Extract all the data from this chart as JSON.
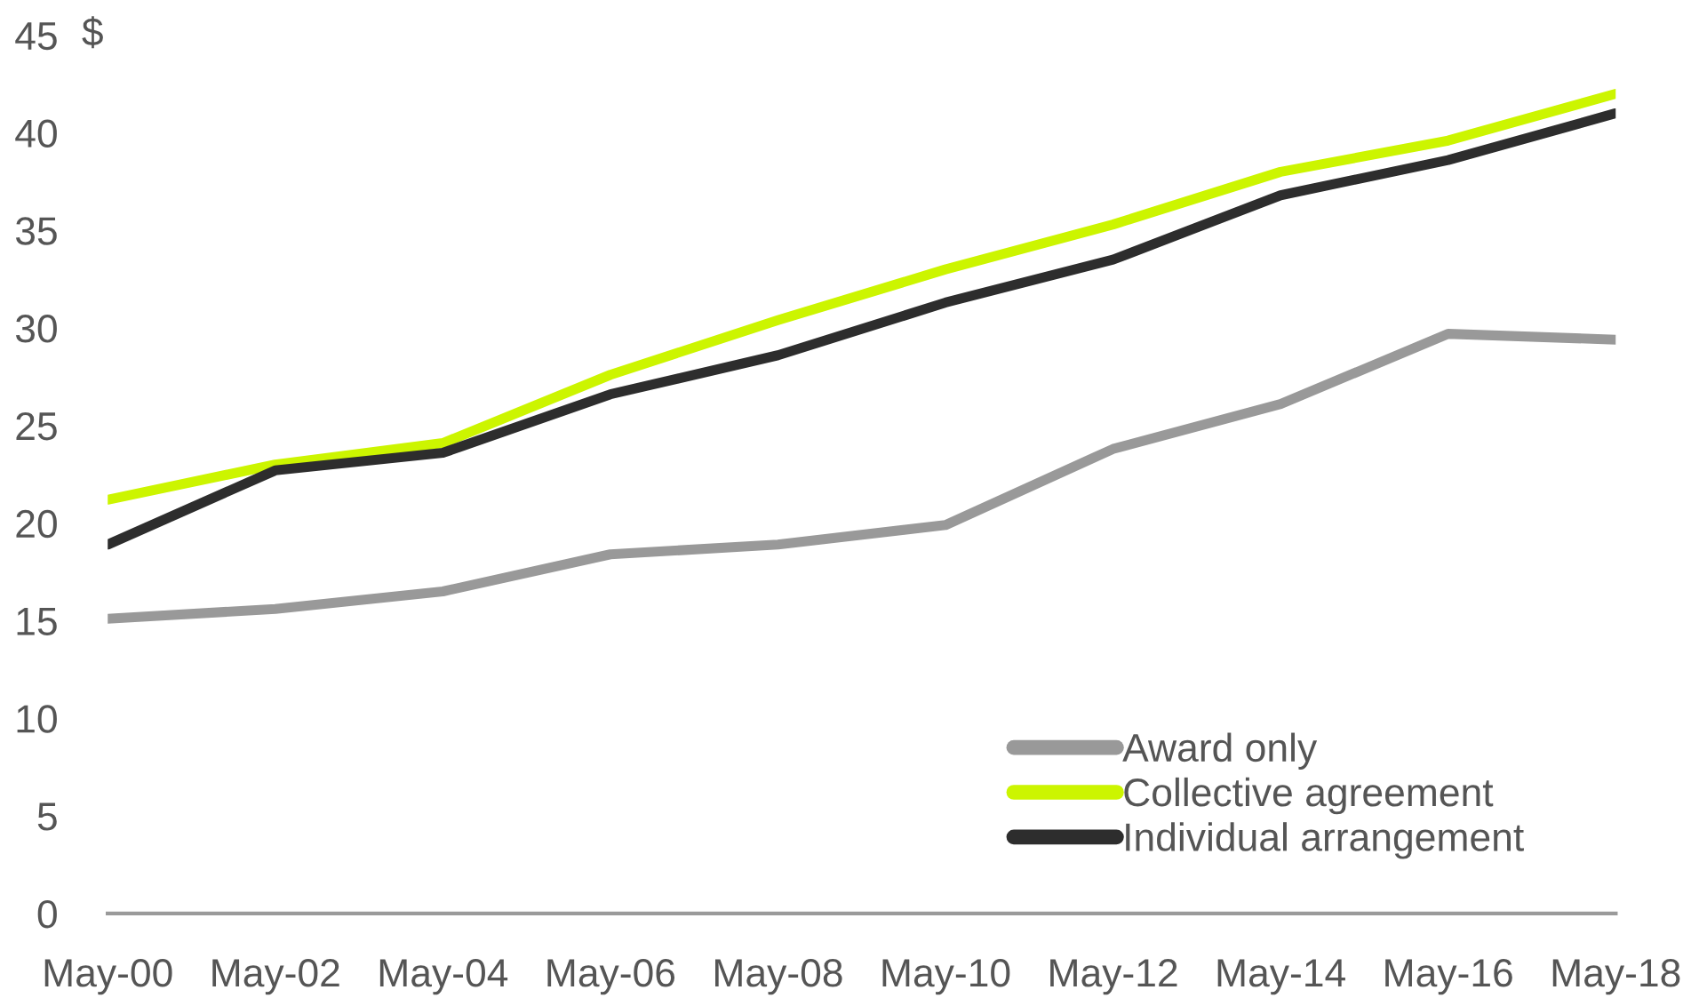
{
  "chart_data": {
    "type": "line",
    "ylabel": "$",
    "categories": [
      "May-00",
      "May-02",
      "May-04",
      "May-06",
      "May-08",
      "May-10",
      "May-12",
      "May-14",
      "May-16",
      "May-18"
    ],
    "series": [
      {
        "name": "Award only",
        "color": "#999999",
        "values": [
          15.1,
          15.6,
          16.5,
          18.4,
          18.9,
          19.9,
          23.8,
          26.1,
          29.7,
          29.4
        ]
      },
      {
        "name": "Collective agreement",
        "color": "#ccf500",
        "values": [
          21.2,
          23.0,
          24.1,
          27.6,
          30.4,
          33.0,
          35.3,
          38.0,
          39.6,
          42.0
        ]
      },
      {
        "name": "Individual arrangement",
        "color": "#2d2d2d",
        "values": [
          18.9,
          22.7,
          23.6,
          26.6,
          28.6,
          31.3,
          33.5,
          36.8,
          38.6,
          41.0
        ]
      }
    ],
    "ylim": [
      0,
      45
    ],
    "yticks": [
      0,
      5,
      10,
      15,
      20,
      25,
      30,
      35,
      40,
      45
    ],
    "legend": "bottom right",
    "line_style": "solid"
  }
}
